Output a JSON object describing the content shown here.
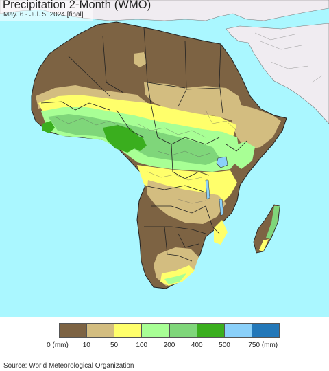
{
  "header": {
    "title": "Precipitation 2-Month (WMO)",
    "subtitle": "May. 6 - Jul. 5, 2024 [final]"
  },
  "legend": {
    "items": [
      {
        "label": "0 (mm)",
        "color": "#7d6343"
      },
      {
        "label": "10",
        "color": "#d3bd80"
      },
      {
        "label": "50",
        "color": "#ffff6b"
      },
      {
        "label": "100",
        "color": "#a8ff95"
      },
      {
        "label": "200",
        "color": "#7fd67a"
      },
      {
        "label": "400",
        "color": "#3aae1e"
      },
      {
        "label": "500",
        "color": "#8ad0f9"
      },
      {
        "label": "750 (mm)",
        "color": "#2378b9"
      }
    ]
  },
  "colors": {
    "ocean": "#aaf7ff",
    "outside_region": "#f0ecf1",
    "borders": "#333333"
  },
  "footer": {
    "source": "Source: World Meteorological Organization"
  }
}
